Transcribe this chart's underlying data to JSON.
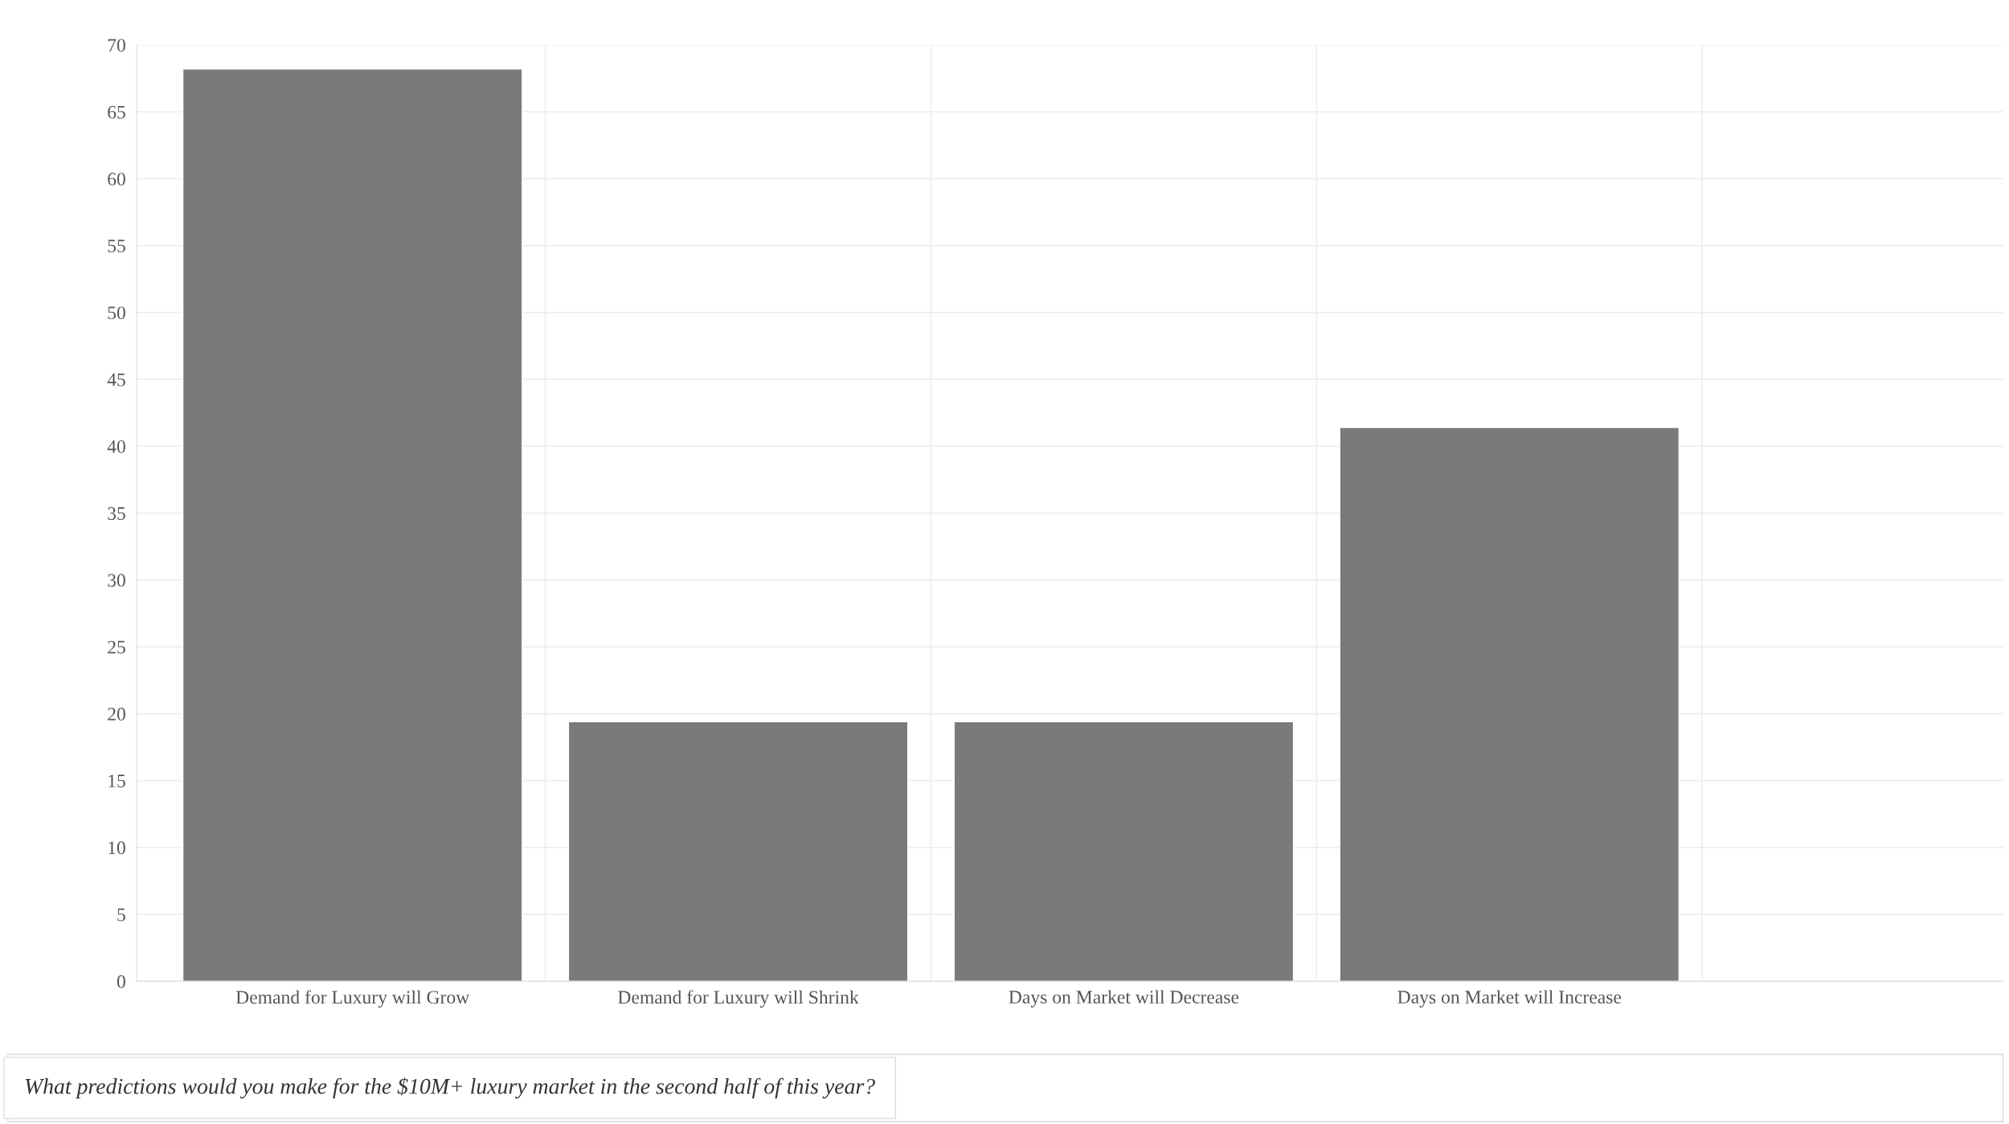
{
  "chart_data": {
    "type": "bar",
    "categories": [
      "Demand for Luxury will Grow",
      "Demand for Luxury will Shrink",
      "Days on Market will Decrease",
      "Days on Market will Increase"
    ],
    "values": [
      68.2,
      19.4,
      19.4,
      41.4
    ],
    "color": "#7a7a7a",
    "ylim": [
      0,
      70
    ],
    "yticks": [
      0,
      5,
      10,
      15,
      20,
      25,
      30,
      35,
      40,
      45,
      50,
      55,
      60,
      65,
      70
    ],
    "grid": true,
    "annotations": [
      "What predictions would you make for the $10M+ luxury market in the second half of this year?"
    ]
  }
}
